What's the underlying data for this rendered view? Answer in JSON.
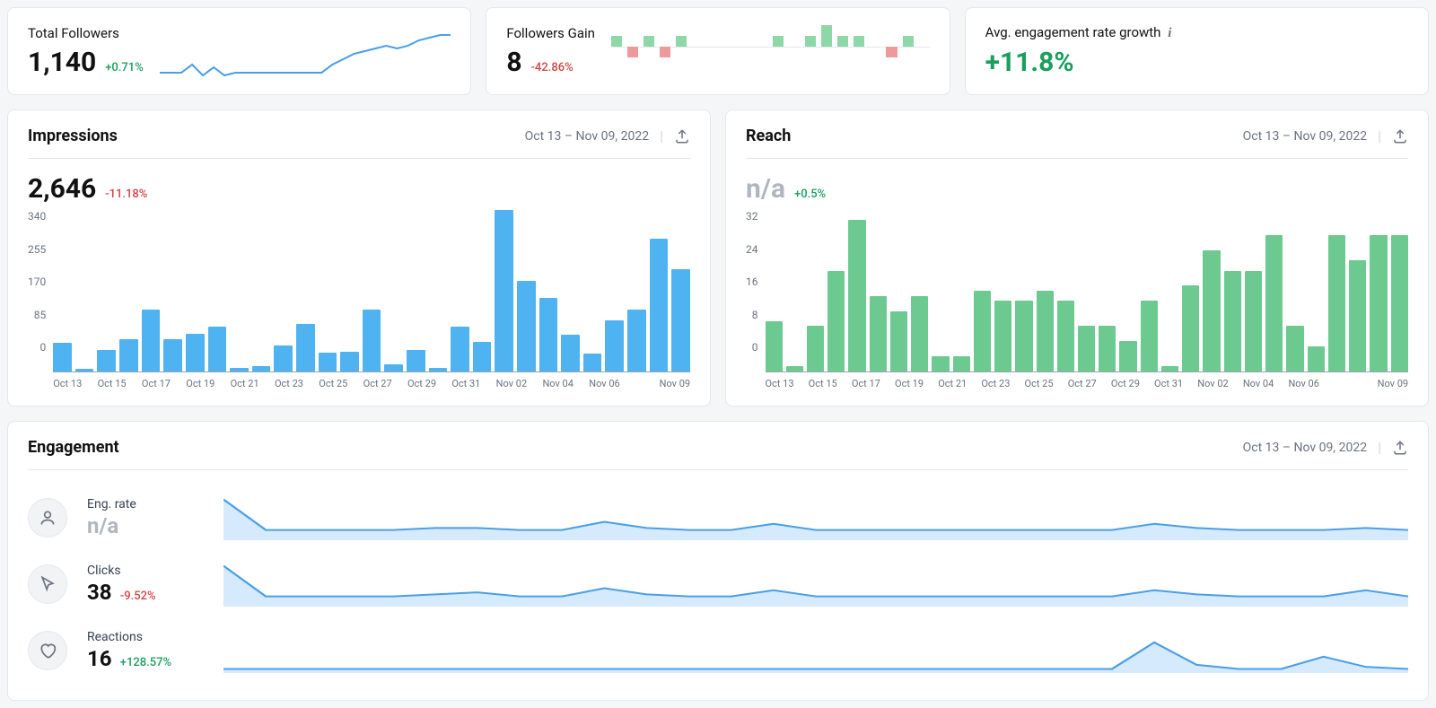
{
  "colors": {
    "blue_line": "#4a9fe8",
    "blue_fill": "#d5eafc",
    "blue_bar": "#4eb3f0",
    "green_bar": "#6cca91",
    "green_spark": "#6cca91",
    "red_spark": "#ef9a9a",
    "pos_text": "#1a9f5c",
    "neg_text": "#d14343",
    "gray_text": "#6b7280",
    "grid": "#9ca3af",
    "na_text": "#b0b6bf"
  },
  "date_range": "Oct 13 – Nov 09, 2022",
  "top": {
    "followers": {
      "label": "Total Followers",
      "value": "1,140",
      "delta": "+0.71%",
      "delta_sign": "pos",
      "spark": {
        "type": "line",
        "points": [
          18,
          18,
          18,
          15,
          19,
          16,
          19,
          18,
          18,
          18,
          18,
          18,
          18,
          18,
          18,
          18,
          15,
          13,
          11,
          10,
          9,
          8,
          9,
          8,
          6,
          5,
          4,
          4
        ],
        "ymax": 20,
        "stroke": "#4a9fe8",
        "stroke_width": 2
      }
    },
    "gain": {
      "label": "Followers Gain",
      "value": "8",
      "delta": "-42.86%",
      "delta_sign": "neg",
      "bars": {
        "type": "bar-bipolar",
        "values": [
          1,
          -1,
          1,
          -1,
          1,
          0,
          0,
          0,
          0,
          0,
          1,
          0,
          1,
          2,
          1,
          1,
          0,
          -1,
          1,
          0
        ],
        "max": 2,
        "pos_color": "#8ed8a8",
        "neg_color": "#ef9a9a",
        "bar_height_unit": 10
      }
    },
    "engagement_growth": {
      "label": "Avg. engagement rate growth",
      "value": "+11.8%",
      "has_info": true
    }
  },
  "impressions": {
    "title": "Impressions",
    "value": "2,646",
    "delta": "-11.18%",
    "delta_sign": "neg",
    "chart": {
      "type": "bar",
      "ymax": 340,
      "yticks": [
        340,
        255,
        170,
        85,
        0
      ],
      "values": [
        60,
        6,
        45,
        68,
        130,
        68,
        80,
        95,
        8,
        12,
        55,
        100,
        40,
        42,
        130,
        15,
        45,
        8,
        95,
        62,
        340,
        190,
        155,
        78,
        38,
        108,
        130,
        280,
        215
      ],
      "bar_color": "#4eb3f0",
      "x_labels": [
        "Oct 13",
        "",
        "Oct 15",
        "",
        "Oct 17",
        "",
        "Oct 19",
        "",
        "Oct 21",
        "",
        "Oct 23",
        "",
        "Oct 25",
        "",
        "Oct 27",
        "",
        "Oct 29",
        "",
        "Oct 31",
        "",
        "Nov 02",
        "",
        "Nov 04",
        "",
        "Nov 06",
        "",
        "",
        "",
        "Nov 09"
      ]
    }
  },
  "reach": {
    "title": "Reach",
    "value": "n/a",
    "value_class": "na",
    "delta": "+0.5%",
    "delta_sign": "pos",
    "chart": {
      "type": "bar",
      "ymax": 32,
      "yticks": [
        32,
        24,
        16,
        8,
        0
      ],
      "values": [
        10,
        1,
        9,
        20,
        30,
        15,
        12,
        15,
        3,
        3,
        16,
        14,
        14,
        16,
        14,
        9,
        9,
        6,
        14,
        1,
        17,
        24,
        20,
        20,
        27,
        9,
        5,
        27,
        22,
        27,
        27
      ],
      "bar_color": "#6cca91",
      "x_labels": [
        "Oct 13",
        "",
        "Oct 15",
        "",
        "Oct 17",
        "",
        "Oct 19",
        "",
        "Oct 21",
        "",
        "Oct 23",
        "",
        "Oct 25",
        "",
        "Oct 27",
        "",
        "Oct 29",
        "",
        "Oct 31",
        "",
        "Nov 02",
        "",
        "Nov 04",
        "",
        "Nov 06",
        "",
        "",
        "",
        "",
        "",
        "Nov 09"
      ]
    }
  },
  "engagement": {
    "title": "Engagement",
    "rows": [
      {
        "icon": "person",
        "label": "Eng. rate",
        "value": "n/a",
        "value_class": "na",
        "delta": "",
        "spark": [
          20,
          5,
          5,
          5,
          5,
          6,
          6,
          5,
          5,
          9,
          6,
          5,
          5,
          8,
          5,
          5,
          5,
          5,
          5,
          5,
          5,
          5,
          8,
          6,
          5,
          5,
          5,
          6,
          5
        ]
      },
      {
        "icon": "cursor",
        "label": "Clicks",
        "value": "38",
        "delta": "-9.52%",
        "delta_sign": "neg",
        "spark": [
          20,
          5,
          5,
          5,
          5,
          6,
          7,
          5,
          5,
          9,
          6,
          5,
          5,
          8,
          5,
          5,
          5,
          5,
          5,
          5,
          5,
          5,
          8,
          6,
          5,
          5,
          5,
          8,
          5
        ]
      },
      {
        "icon": "heart",
        "label": "Reactions",
        "value": "16",
        "delta": "+128.57%",
        "delta_sign": "pos",
        "spark": [
          2,
          2,
          2,
          2,
          2,
          2,
          2,
          2,
          2,
          2,
          2,
          2,
          2,
          2,
          2,
          2,
          2,
          2,
          2,
          2,
          2,
          2,
          15,
          4,
          2,
          2,
          8,
          3,
          2
        ]
      }
    ],
    "spark_style": {
      "stroke": "#4a9fe8",
      "fill": "#d5eafc",
      "stroke_width": 2,
      "ymax": 22
    }
  }
}
